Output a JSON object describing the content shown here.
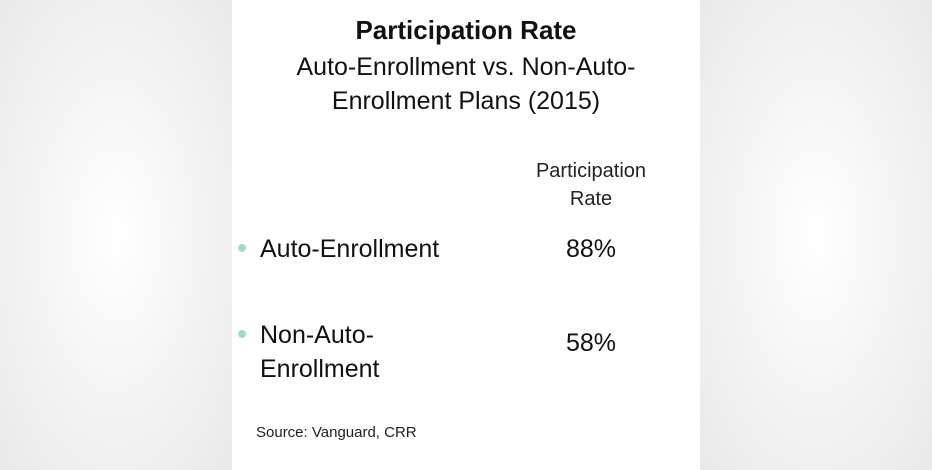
{
  "title": "Participation Rate",
  "subtitle_line1": "Auto-Enrollment vs. Non-Auto-",
  "subtitle_line2": "Enrollment Plans (2015)",
  "column_header_line1": "Participation",
  "column_header_line2": "Rate",
  "rows": [
    {
      "label_line1": "Auto-Enrollment",
      "label_line2": "",
      "value": "88%"
    },
    {
      "label_line1": "Non-Auto-",
      "label_line2": "Enrollment",
      "value": "58%"
    }
  ],
  "source": "Source:  Vanguard, CRR",
  "colors": {
    "bullet": "#a6d9c8",
    "text": "#111111",
    "background": "#ffffff"
  }
}
